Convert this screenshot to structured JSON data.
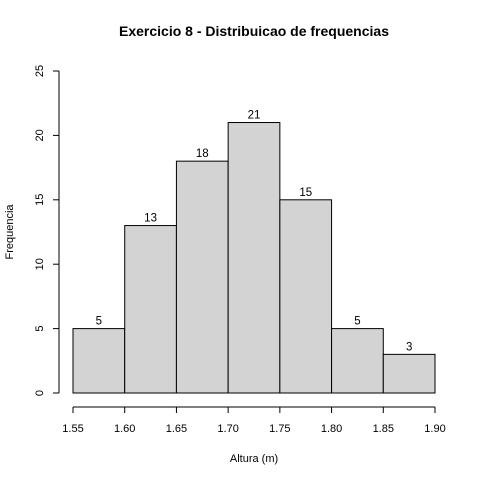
{
  "chart_data": {
    "type": "bar",
    "title": "Exercicio 8 - Distribuicao de frequencias",
    "xlabel": "Altura (m)",
    "ylabel": "Frequencia",
    "bin_edges": [
      1.55,
      1.6,
      1.65,
      1.7,
      1.75,
      1.8,
      1.85,
      1.9
    ],
    "values": [
      5,
      13,
      18,
      21,
      15,
      5,
      3
    ],
    "data_labels": [
      "5",
      "13",
      "18",
      "21",
      "15",
      "5",
      "3"
    ],
    "xlim": [
      1.55,
      1.9
    ],
    "ylim": [
      0,
      25
    ],
    "x_ticks": [
      "1.55",
      "1.60",
      "1.65",
      "1.70",
      "1.75",
      "1.80",
      "1.85",
      "1.90"
    ],
    "y_ticks": [
      "0",
      "5",
      "10",
      "15",
      "20",
      "25"
    ],
    "bar_color": "#d3d3d3",
    "edge_color": "#000000",
    "grid": false,
    "legend": "none"
  }
}
